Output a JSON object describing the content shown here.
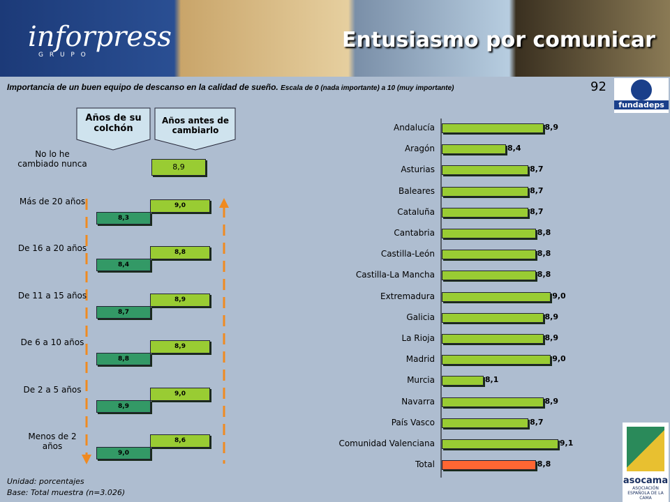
{
  "header": {
    "brand": "inforpress",
    "brand_sub": "G R U P O",
    "title": "Entusiasmo por comunicar"
  },
  "subtitle": "Importancia de un buen equipo de descanso en la calidad de sueño.",
  "scale_note": "Escala de 0 (nada importante) a 10 (muy importante)",
  "page_number": "92",
  "logo_top": "fundadeps",
  "logo_bottom": {
    "name": "asocama",
    "sub": "ASOCIACIÓN ESPAÑOLA DE LA CAMA"
  },
  "footer": [
    "Unidad: porcentajes",
    "Base: Total muestra (n=3.026)"
  ],
  "chart_data": [
    {
      "type": "paired-bar",
      "categories": [
        "No lo he cambiado nunca",
        "Más de 20 años",
        "De 16 a 20 años",
        "De 11 a 15 años",
        "De 6 a 10 años",
        "De 2 a 5 años",
        "Menos de 2 años"
      ],
      "series": [
        {
          "name": "Años de su colchón",
          "color": "#339966",
          "values": [
            null,
            8.3,
            8.4,
            8.7,
            8.8,
            8.9,
            9.0
          ],
          "value_labels": [
            null,
            "8,3",
            "8,4",
            "8,7",
            "8,8",
            "8,9",
            "9,0"
          ]
        },
        {
          "name": "Años antes de cambiarlo",
          "color": "#99cc33",
          "values": [
            8.9,
            9.0,
            8.8,
            8.9,
            8.9,
            9.0,
            8.6
          ],
          "value_labels": [
            "8,9",
            "9,0",
            "8,8",
            "8,9",
            "8,9",
            "9,0",
            "8,6"
          ]
        }
      ]
    },
    {
      "type": "hbar",
      "categories": [
        "Andalucía",
        "Aragón",
        "Asturias",
        "Baleares",
        "Cataluña",
        "Cantabria",
        "Castilla-León",
        "Castilla-La Mancha",
        "Extremadura",
        "Galicia",
        "La Rioja",
        "Madrid",
        "Murcia",
        "Navarra",
        "País Vasco",
        "Comunidad Valenciana",
        "Total"
      ],
      "values": [
        8.9,
        8.4,
        8.7,
        8.7,
        8.7,
        8.8,
        8.8,
        8.8,
        9.0,
        8.9,
        8.9,
        9.0,
        8.1,
        8.9,
        8.7,
        9.1,
        8.8
      ],
      "value_labels": [
        "8,9",
        "8,4",
        "8,7",
        "8,7",
        "8,7",
        "8,8",
        "8,8",
        "8,8",
        "9,0",
        "8,9",
        "8,9",
        "9,0",
        "8,1",
        "8,9",
        "8,7",
        "9,1",
        "8,8"
      ],
      "colors": [
        "#99cc33",
        "#99cc33",
        "#99cc33",
        "#99cc33",
        "#99cc33",
        "#99cc33",
        "#99cc33",
        "#99cc33",
        "#99cc33",
        "#99cc33",
        "#99cc33",
        "#99cc33",
        "#99cc33",
        "#99cc33",
        "#99cc33",
        "#99cc33",
        "#ff6633"
      ],
      "xlim": [
        7.54,
        9.4
      ]
    }
  ]
}
